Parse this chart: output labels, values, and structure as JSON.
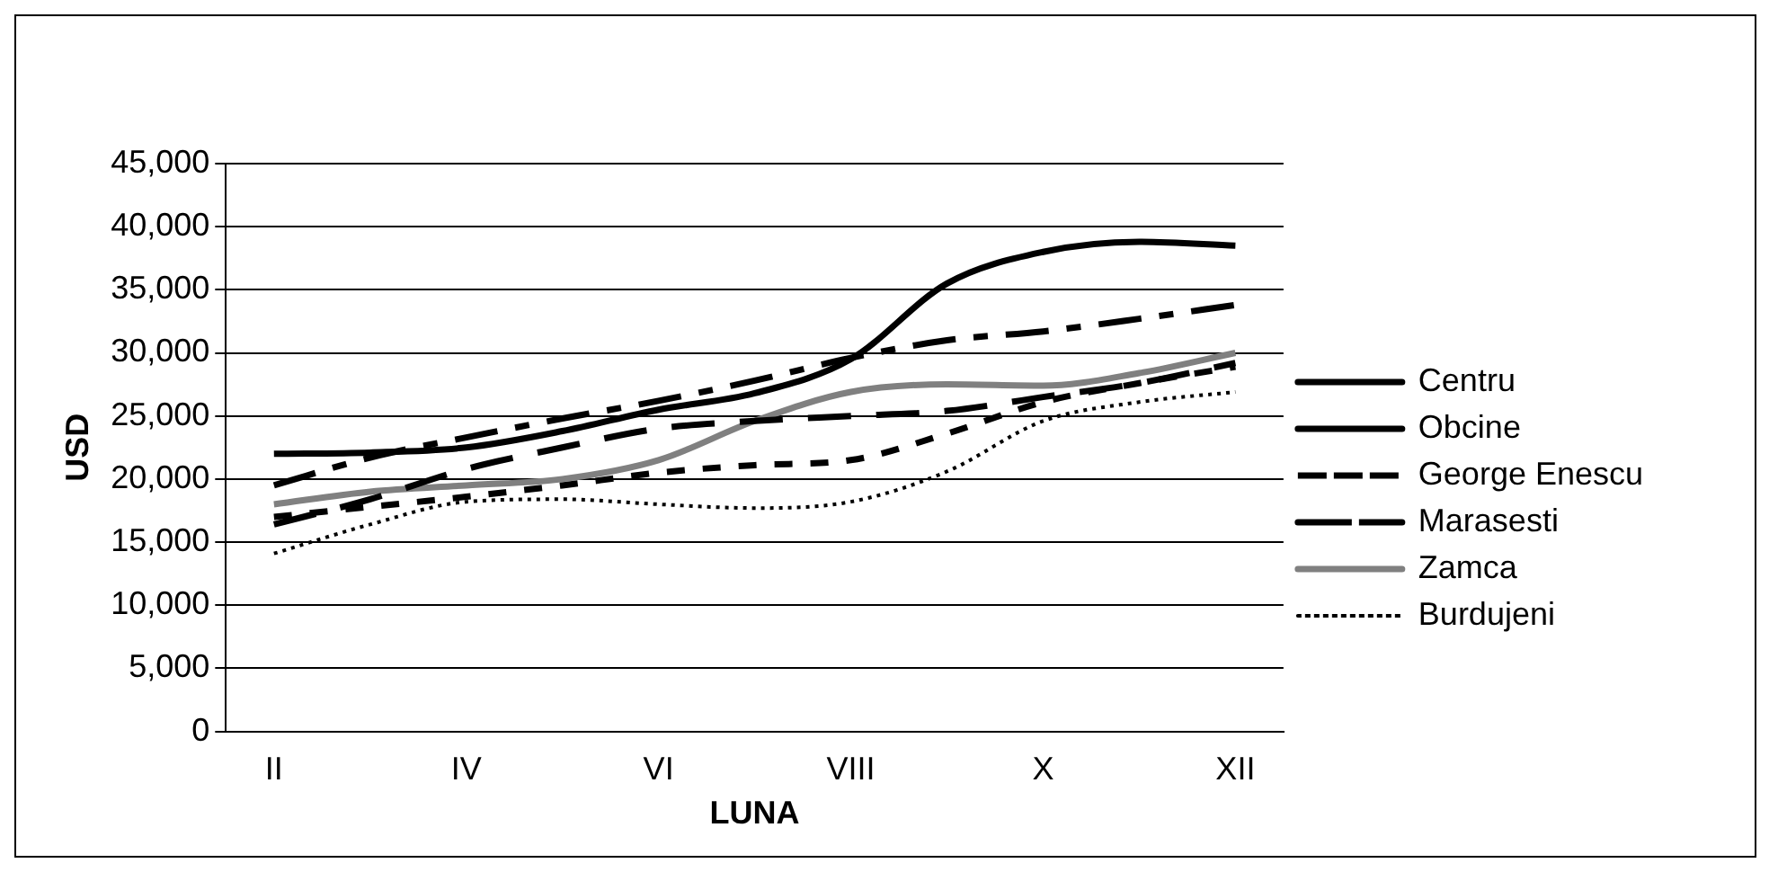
{
  "chart_data": {
    "type": "line",
    "xlabel": "LUNA",
    "ylabel": "USD",
    "categories": [
      "II",
      null,
      "IV",
      null,
      "VI",
      null,
      "VIII",
      null,
      "X",
      null,
      "XII"
    ],
    "ylim": [
      0,
      45000
    ],
    "yticks": [
      {
        "value": 0,
        "label": "0"
      },
      {
        "value": 5000,
        "label": "5,000"
      },
      {
        "value": 10000,
        "label": "10,000"
      },
      {
        "value": 15000,
        "label": "15,000"
      },
      {
        "value": 20000,
        "label": "20,000"
      },
      {
        "value": 25000,
        "label": "25,000"
      },
      {
        "value": 30000,
        "label": "30,000"
      },
      {
        "value": 35000,
        "label": "35,000"
      },
      {
        "value": 40000,
        "label": "40,000"
      },
      {
        "value": 45000,
        "label": "45,000"
      }
    ],
    "grid": "y",
    "legend": "right",
    "marker": "none",
    "series": [
      {
        "name": "Centru",
        "color": "#000000",
        "line_style": "solid",
        "values": [
          22000,
          22100,
          22500,
          23800,
          25500,
          26800,
          29500,
          35500,
          38000,
          38800,
          38500
        ]
      },
      {
        "name": "Obcine",
        "color": "#000000",
        "line_style": "dashed",
        "values": [
          16400,
          18400,
          20800,
          22500,
          24000,
          24600,
          25000,
          25400,
          26500,
          27600,
          29200
        ]
      },
      {
        "name": "George Enescu",
        "color": "#000000",
        "line_style": "dashed",
        "values": [
          17000,
          17800,
          18600,
          19500,
          20500,
          21100,
          21500,
          23600,
          26100,
          27600,
          28900
        ]
      },
      {
        "name": "Marasesti",
        "color": "#000000",
        "line_style": "dashed",
        "values": [
          19500,
          21700,
          23300,
          24800,
          26200,
          27800,
          29600,
          31000,
          31700,
          32700,
          33800
        ]
      },
      {
        "name": "Zamca",
        "color": "#808080",
        "line_style": "solid",
        "values": [
          18000,
          19000,
          19500,
          20000,
          21500,
          24600,
          26900,
          27500,
          27400,
          28400,
          30000
        ]
      },
      {
        "name": "Burdujeni",
        "color": "#000000",
        "line_style": "dotted",
        "values": [
          14100,
          16400,
          18200,
          18400,
          18000,
          17700,
          18200,
          20600,
          24600,
          26100,
          26900
        ]
      }
    ]
  }
}
